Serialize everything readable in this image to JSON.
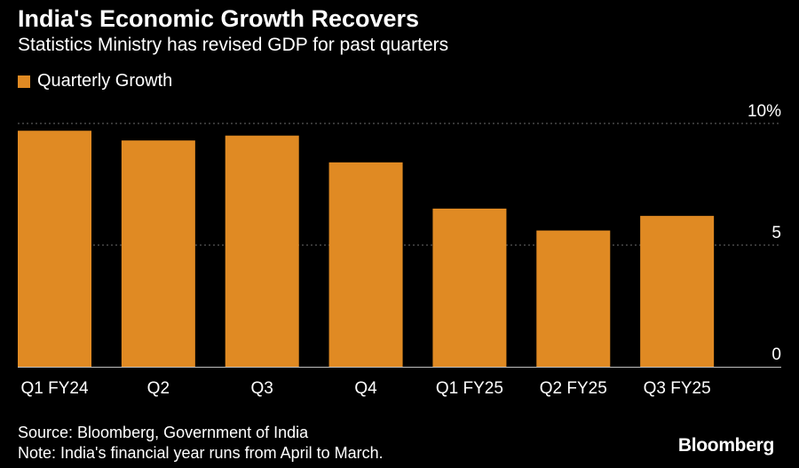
{
  "chart_data": {
    "type": "bar",
    "title": "India's Economic Growth Recovers",
    "subtitle": "Statistics Ministry has revised GDP for past quarters",
    "categories": [
      "Q1 FY24",
      "Q2",
      "Q3",
      "Q4",
      "Q1 FY25",
      "Q2 FY25",
      "Q3 FY25"
    ],
    "series": [
      {
        "name": "Quarterly Growth",
        "values": [
          9.7,
          9.3,
          9.5,
          8.4,
          6.5,
          5.6,
          6.2
        ]
      }
    ],
    "ylim": [
      0,
      10
    ],
    "yticks": [
      {
        "value": 0,
        "label": "0"
      },
      {
        "value": 5,
        "label": "5"
      },
      {
        "value": 10,
        "label": "10%"
      }
    ],
    "grid": true,
    "legend_position": "top-left",
    "bar_color": "#E08A23"
  },
  "footer": {
    "source": "Source: Bloomberg, Government of India",
    "note": "Note: India's financial year runs from April to March."
  },
  "brand": {
    "logo_text": "Bloomberg"
  }
}
